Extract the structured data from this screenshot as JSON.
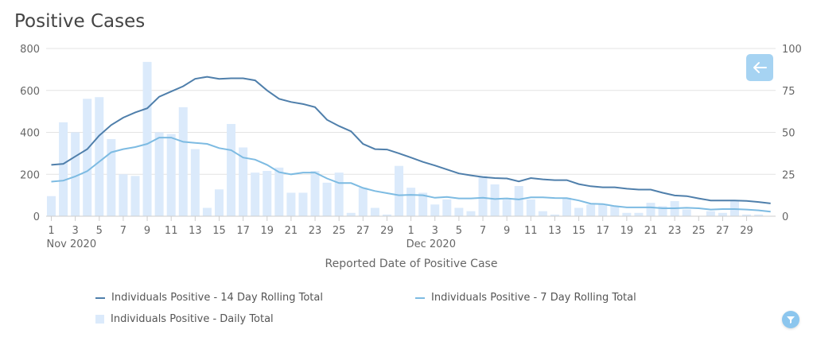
{
  "title": "Positive Cases",
  "colors": {
    "line14": "#4f7fab",
    "line7": "#7dbbe2",
    "bars": "#dbeafb",
    "grid": "#e3e3e3"
  },
  "icons": {
    "back": "arrow-left-icon",
    "filter": "filter-icon"
  },
  "chart_data": {
    "type": "bar+line",
    "title": "Positive Cases",
    "xlabel": "Reported Date of Positive Case",
    "ylabel_left": "",
    "ylabel_right": "",
    "ylim_left": [
      0,
      800
    ],
    "ylim_right": [
      0,
      100
    ],
    "yticks_left": [
      "0",
      "200",
      "400",
      "600",
      "800"
    ],
    "yticks_right": [
      "0",
      "25",
      "50",
      "75",
      "100"
    ],
    "xtick_labels": [
      "1",
      "3",
      "5",
      "7",
      "9",
      "11",
      "13",
      "15",
      "17",
      "19",
      "21",
      "23",
      "25",
      "27",
      "29",
      "1",
      "3",
      "5",
      "7",
      "9",
      "11",
      "13",
      "15",
      "17",
      "19",
      "21",
      "23",
      "25",
      "27",
      "29"
    ],
    "month_labels": [
      "Nov 2020",
      "Dec 2020"
    ],
    "grid": true,
    "legend_position": "bottom",
    "x": [
      "Nov 1",
      "Nov 2",
      "Nov 3",
      "Nov 4",
      "Nov 5",
      "Nov 6",
      "Nov 7",
      "Nov 8",
      "Nov 9",
      "Nov 10",
      "Nov 11",
      "Nov 12",
      "Nov 13",
      "Nov 14",
      "Nov 15",
      "Nov 16",
      "Nov 17",
      "Nov 18",
      "Nov 19",
      "Nov 20",
      "Nov 21",
      "Nov 22",
      "Nov 23",
      "Nov 24",
      "Nov 25",
      "Nov 26",
      "Nov 27",
      "Nov 28",
      "Nov 29",
      "Nov 30",
      "Dec 1",
      "Dec 2",
      "Dec 3",
      "Dec 4",
      "Dec 5",
      "Dec 6",
      "Dec 7",
      "Dec 8",
      "Dec 9",
      "Dec 10",
      "Dec 11",
      "Dec 12",
      "Dec 13",
      "Dec 14",
      "Dec 15",
      "Dec 16",
      "Dec 17",
      "Dec 18",
      "Dec 19",
      "Dec 20",
      "Dec 21",
      "Dec 22",
      "Dec 23",
      "Dec 24",
      "Dec 25",
      "Dec 26",
      "Dec 27",
      "Dec 28",
      "Dec 29",
      "Dec 30",
      "Dec 31"
    ],
    "series": [
      {
        "name": "Individuals Positive - 14 Day Rolling Total",
        "type": "line",
        "axis": "left",
        "values": [
          245,
          250,
          285,
          320,
          385,
          435,
          470,
          495,
          515,
          570,
          595,
          620,
          655,
          665,
          655,
          658,
          658,
          648,
          600,
          560,
          545,
          535,
          520,
          460,
          430,
          405,
          345,
          320,
          318,
          300,
          280,
          259,
          242,
          223,
          204,
          195,
          187,
          182,
          180,
          166,
          182,
          176,
          172,
          172,
          153,
          143,
          138,
          138,
          131,
          127,
          127,
          112,
          99,
          96,
          85,
          75,
          75,
          75,
          73,
          68,
          61
        ]
      },
      {
        "name": "Individuals Positive - 7 Day Rolling Total",
        "type": "line",
        "axis": "left",
        "values": [
          165,
          170,
          190,
          215,
          260,
          305,
          320,
          330,
          345,
          375,
          375,
          355,
          350,
          345,
          325,
          315,
          280,
          270,
          245,
          210,
          200,
          208,
          208,
          180,
          158,
          158,
          135,
          120,
          110,
          100,
          102,
          100,
          88,
          92,
          85,
          85,
          88,
          82,
          85,
          80,
          90,
          90,
          87,
          86,
          75,
          60,
          58,
          48,
          42,
          42,
          42,
          38,
          38,
          40,
          38,
          32,
          34,
          34,
          32,
          28,
          22
        ]
      },
      {
        "name": "Individuals Positive - Daily Total",
        "type": "bar",
        "axis": "right",
        "values": [
          12,
          56,
          50,
          70,
          71,
          46,
          25,
          24,
          92,
          50,
          49,
          65,
          40,
          5,
          16,
          55,
          41,
          26,
          27,
          29,
          14,
          14,
          27,
          20,
          26,
          2,
          17,
          5,
          1,
          30,
          17,
          14,
          7,
          10,
          5,
          3,
          24,
          19,
          10,
          18,
          10,
          3,
          1,
          11,
          5,
          7,
          7,
          6,
          2,
          2,
          8,
          6,
          9,
          4,
          0,
          3,
          2,
          9,
          1,
          1,
          0
        ]
      }
    ]
  }
}
